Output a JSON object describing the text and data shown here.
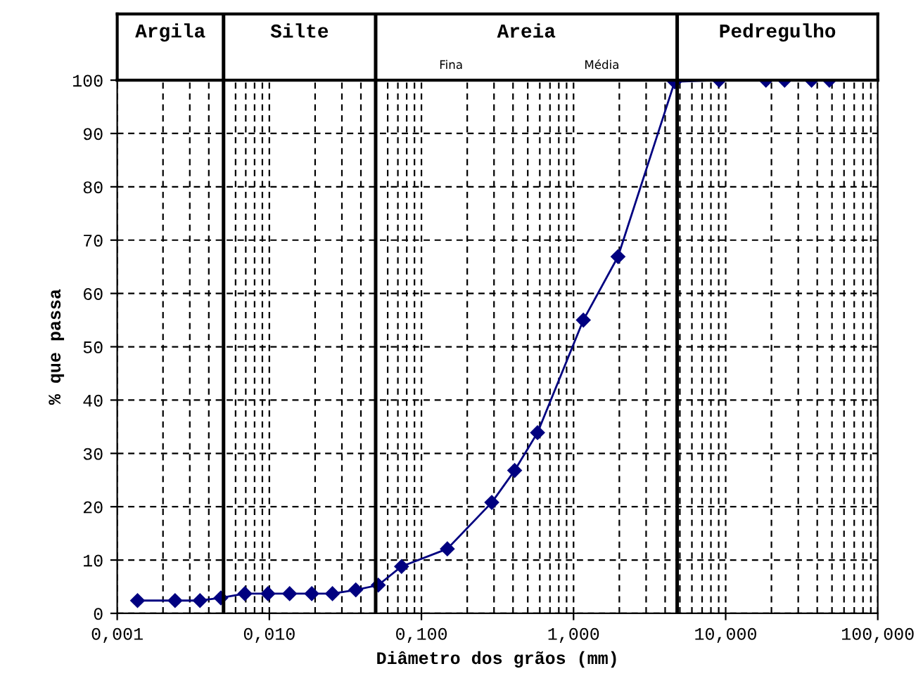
{
  "chart_data": {
    "type": "line",
    "xlabel": "Diâmetro dos grãos (mm)",
    "ylabel": "% que passa",
    "log": "x",
    "x": [
      0.00136,
      0.0024,
      0.0035,
      0.0048,
      0.0069,
      0.0098,
      0.0136,
      0.019,
      0.026,
      0.037,
      0.052,
      0.074,
      0.148,
      0.29,
      0.41,
      0.58,
      1.16,
      1.96,
      4.62,
      9.06,
      18.4,
      24.4,
      36.7,
      48.1
    ],
    "series": [
      {
        "color": "#000080",
        "values": [
          2.4,
          2.4,
          2.4,
          2.9,
          3.7,
          3.7,
          3.7,
          3.7,
          3.7,
          4.4,
          5.3,
          8.8,
          12.1,
          20.8,
          26.8,
          33.9,
          55.0,
          66.9,
          99.7,
          100,
          100,
          100,
          100,
          100
        ]
      }
    ],
    "marker": "diamond",
    "line_style": "solid",
    "grid": true,
    "xlim": [
      0.001,
      100
    ],
    "xticks": [
      {
        "value": 0.001,
        "label": "0,001"
      },
      {
        "value": 0.01,
        "label": "0,010"
      },
      {
        "value": 0.1,
        "label": "0,100"
      },
      {
        "value": 1,
        "label": "1,000"
      },
      {
        "value": 10,
        "label": "10,000"
      },
      {
        "value": 100,
        "label": "100,000"
      }
    ],
    "ylim": [
      0,
      100
    ],
    "yticks": [
      0,
      10,
      20,
      30,
      40,
      50,
      60,
      70,
      80,
      90,
      100
    ],
    "ref_lines": [
      {
        "axis": "x",
        "value": 0.005,
        "color": "#000000"
      },
      {
        "axis": "x",
        "value": 0.05,
        "color": "#000000"
      },
      {
        "axis": "x",
        "value": 4.8,
        "color": "#000000"
      }
    ],
    "annotations": [
      "Argila",
      "Silte",
      "Areia",
      "Pedregulho",
      "Fina",
      "Média"
    ]
  }
}
